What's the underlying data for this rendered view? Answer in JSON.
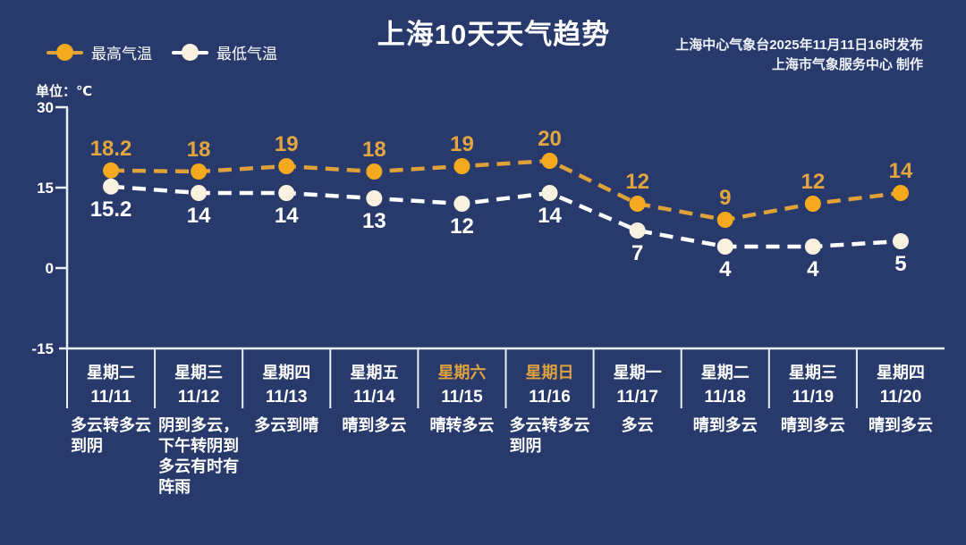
{
  "header": {
    "title": "上海10天天气趋势",
    "source_line1": "上海中心气象台2025年11月11日16时发布",
    "source_line2": "上海市气象服务中心  制作",
    "unit_label": "单位：℃"
  },
  "legend": {
    "high_label": "最高气温",
    "low_label": "最低气温"
  },
  "colors": {
    "background": "#273a6b",
    "axis": "#e9edf4",
    "text": "#ffffff",
    "high_marker": "#f5a91f",
    "high_line": "#dfa13a",
    "high_text": "#e2a540",
    "low_marker": "#f8f1e0",
    "low_line": "#ffffff",
    "low_text": "#ffffff",
    "weekend_text": "#dfa240"
  },
  "chart_data": {
    "type": "line",
    "title": "上海10天天气趋势",
    "ylabel": "℃",
    "ylim": [
      -15,
      30
    ],
    "yticks": [
      30,
      15,
      0,
      -15
    ],
    "grid": false,
    "legend_position": "top-left",
    "categories": [
      "11/11",
      "11/12",
      "11/13",
      "11/14",
      "11/15",
      "11/16",
      "11/17",
      "11/18",
      "11/19",
      "11/20"
    ],
    "weekdays": [
      "星期二",
      "星期三",
      "星期四",
      "星期五",
      "星期六",
      "星期日",
      "星期一",
      "星期二",
      "星期三",
      "星期四"
    ],
    "weekend_indices": [
      4,
      5
    ],
    "series": [
      {
        "name": "最高气温",
        "values": [
          18.2,
          18,
          19,
          18,
          19,
          20,
          12,
          9,
          12,
          14
        ]
      },
      {
        "name": "最低气温",
        "values": [
          15.2,
          14,
          14,
          13,
          12,
          14,
          7,
          4,
          4,
          5
        ]
      }
    ],
    "weather_lines": [
      [
        "多云转多云",
        "到阴"
      ],
      [
        "阴到多云，",
        "下午转阴到",
        "多云有时有",
        "阵雨"
      ],
      [
        "多云到晴"
      ],
      [
        "晴到多云"
      ],
      [
        "晴转多云"
      ],
      [
        "多云转多云",
        "到阴"
      ],
      [
        "多云"
      ],
      [
        "晴到多云"
      ],
      [
        "晴到多云"
      ],
      [
        "晴到多云"
      ]
    ]
  }
}
